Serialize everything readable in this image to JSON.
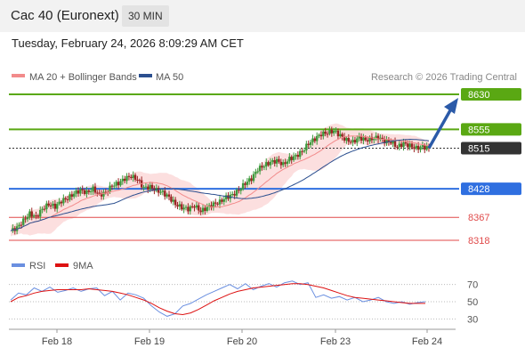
{
  "header": {
    "title": "Cac 40 (Euronext)",
    "interval": "30 MIN",
    "datetime": "Tuesday, February 24, 2026 8:09:29 AM CET"
  },
  "legend": {
    "ma20": "MA 20 + Bollinger Bands",
    "ma50": "MA 50",
    "credit": "Research © 2026 Trading Central",
    "rsi": "RSI",
    "rsi_ma": "9MA"
  },
  "colors": {
    "green": "#5aa813",
    "blue": "#2f6fe0",
    "red": "#e04a4a",
    "dark": "#333333",
    "candle_up": "#3c9a3c",
    "candle_down": "#9c2525",
    "band": "#fcd9d9",
    "ma20": "#f28b8b",
    "ma50": "#2b4f8f",
    "rsi": "#6a8fe0",
    "rsi_ma": "#dd1111"
  },
  "chart_data": [
    {
      "type": "candlestick",
      "x_ticks": [
        "Feb 18",
        "Feb 19",
        "Feb 20",
        "Feb 23",
        "Feb 24"
      ],
      "levels": [
        {
          "value": 8630,
          "label": "8630",
          "kind": "resistance",
          "color": "#5aa813"
        },
        {
          "value": 8555,
          "label": "8555",
          "kind": "resistance",
          "color": "#5aa813"
        },
        {
          "value": 8515,
          "label": "8515",
          "kind": "last",
          "color": "#333333"
        },
        {
          "value": 8428,
          "label": "8428",
          "kind": "pivot",
          "color": "#2f6fe0"
        },
        {
          "value": 8367,
          "label": "8367",
          "kind": "support",
          "color": "#e04a4a"
        },
        {
          "value": 8318,
          "label": "8318",
          "kind": "support",
          "color": "#e04a4a"
        }
      ],
      "target": {
        "from": 8515,
        "to": 8630
      },
      "close_path": [
        8338,
        8345,
        8360,
        8375,
        8368,
        8385,
        8395,
        8390,
        8402,
        8408,
        8418,
        8425,
        8420,
        8428,
        8415,
        8420,
        8435,
        8440,
        8450,
        8455,
        8448,
        8430,
        8432,
        8425,
        8420,
        8410,
        8395,
        8388,
        8385,
        8392,
        8380,
        8388,
        8395,
        8400,
        8410,
        8415,
        8425,
        8440,
        8450,
        8470,
        8478,
        8485,
        8488,
        8480,
        8492,
        8498,
        8508,
        8525,
        8535,
        8545,
        8548,
        8552,
        8542,
        8532,
        8528,
        8538,
        8532,
        8535,
        8538,
        8530,
        8528,
        8518,
        8525,
        8520,
        8515,
        8518,
        8515
      ]
    },
    {
      "type": "line",
      "name": "RSI",
      "ylim": [
        20,
        80
      ],
      "y_ticks": [
        70,
        50,
        30
      ],
      "rsi": [
        52,
        60,
        58,
        66,
        62,
        67,
        61,
        63,
        66,
        62,
        65,
        66,
        57,
        62,
        52,
        60,
        58,
        54,
        45,
        38,
        33,
        36,
        45,
        48,
        53,
        58,
        62,
        66,
        70,
        65,
        71,
        64,
        68,
        71,
        67,
        72,
        74,
        70,
        72,
        55,
        58,
        54,
        56,
        52,
        55,
        50,
        52,
        55,
        50,
        48,
        50,
        47,
        49,
        50
      ],
      "rsi_ma": [
        50,
        55,
        57,
        60,
        62,
        63,
        64,
        64,
        64,
        64,
        65,
        64,
        63,
        62,
        60,
        58,
        55,
        52,
        48,
        43,
        39,
        36,
        35,
        37,
        41,
        46,
        51,
        55,
        59,
        62,
        64,
        66,
        67,
        68,
        69,
        70,
        71,
        71,
        70,
        68,
        66,
        63,
        60,
        57,
        55,
        54,
        53,
        52,
        51,
        50,
        49,
        48,
        48,
        48
      ]
    }
  ]
}
